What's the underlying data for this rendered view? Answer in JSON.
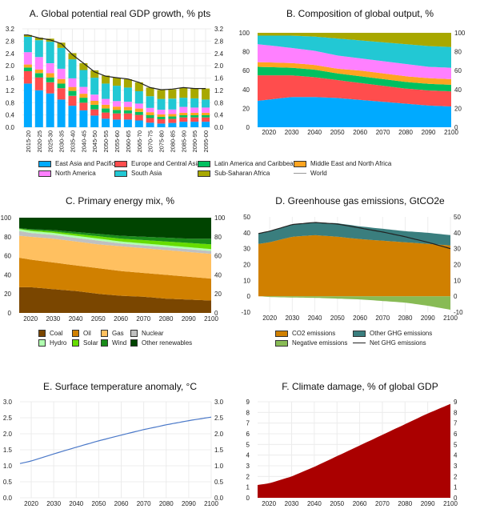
{
  "chart_data": [
    {
      "id": "A",
      "type": "bar",
      "stacked": true,
      "title": "A. Global potential real GDP growth, % pts",
      "xlabel": "",
      "ylabel": "",
      "ylim": [
        0,
        3.2
      ],
      "yticks": [
        0.0,
        0.4,
        0.8,
        1.2,
        1.6,
        2.0,
        2.4,
        2.8,
        3.2
      ],
      "ytick_labels": [
        "0.0",
        "0.4",
        "0.8",
        "1.2",
        "1.6",
        "2.0",
        "2.4",
        "2.8",
        "3.2"
      ],
      "grid": true,
      "categories": [
        "2015-20",
        "2020-25",
        "2025-30",
        "2030-35",
        "2035-40",
        "2040-45",
        "2045-50",
        "2050-55",
        "2055-60",
        "2060-65",
        "2065-70",
        "2070-75",
        "2075-80",
        "2080-85",
        "2085-90",
        "2090-95",
        "2095-00"
      ],
      "series": [
        {
          "name": "East Asia and Pacific",
          "color": "#00aaff",
          "values": [
            1.42,
            1.2,
            1.1,
            0.9,
            0.7,
            0.55,
            0.38,
            0.28,
            0.25,
            0.25,
            0.22,
            0.15,
            0.12,
            0.14,
            0.18,
            0.18,
            0.18
          ]
        },
        {
          "name": "Europe and Central Asia",
          "color": "#ff4d4d",
          "values": [
            0.4,
            0.42,
            0.36,
            0.37,
            0.32,
            0.25,
            0.2,
            0.2,
            0.2,
            0.2,
            0.18,
            0.15,
            0.14,
            0.13,
            0.14,
            0.14,
            0.14
          ]
        },
        {
          "name": "Latin America and Caribbean",
          "color": "#00c060",
          "values": [
            0.12,
            0.14,
            0.16,
            0.15,
            0.16,
            0.16,
            0.15,
            0.13,
            0.11,
            0.1,
            0.1,
            0.09,
            0.08,
            0.08,
            0.07,
            0.07,
            0.07
          ]
        },
        {
          "name": "Middle East and North Africa",
          "color": "#ffa420",
          "values": [
            0.1,
            0.12,
            0.14,
            0.15,
            0.13,
            0.13,
            0.13,
            0.12,
            0.11,
            0.11,
            0.11,
            0.1,
            0.08,
            0.08,
            0.08,
            0.08,
            0.08
          ]
        },
        {
          "name": "North America",
          "color": "#ff80ff",
          "values": [
            0.4,
            0.4,
            0.32,
            0.33,
            0.28,
            0.22,
            0.2,
            0.19,
            0.18,
            0.17,
            0.16,
            0.14,
            0.15,
            0.15,
            0.19,
            0.17,
            0.17
          ]
        },
        {
          "name": "South Asia",
          "color": "#22c8d4",
          "values": [
            0.5,
            0.55,
            0.7,
            0.68,
            0.62,
            0.55,
            0.55,
            0.5,
            0.5,
            0.46,
            0.4,
            0.38,
            0.35,
            0.35,
            0.3,
            0.3,
            0.26
          ]
        },
        {
          "name": "Sub-Saharan Africa",
          "color": "#a8a800",
          "values": [
            0.06,
            0.08,
            0.1,
            0.17,
            0.2,
            0.22,
            0.24,
            0.26,
            0.26,
            0.27,
            0.29,
            0.28,
            0.29,
            0.3,
            0.33,
            0.32,
            0.36
          ]
        }
      ],
      "line_series": {
        "name": "World",
        "color": "#222222",
        "values": [
          3.0,
          2.9,
          2.84,
          2.72,
          2.36,
          2.08,
          1.8,
          1.66,
          1.61,
          1.57,
          1.46,
          1.29,
          1.22,
          1.24,
          1.29,
          1.26,
          1.26
        ]
      }
    },
    {
      "id": "B",
      "type": "area",
      "stacked": true,
      "title": "B. Composition of global output, %",
      "xlabel": "",
      "ylabel": "",
      "xlim": [
        2015,
        2100
      ],
      "xticks": [
        2020,
        2030,
        2040,
        2050,
        2060,
        2070,
        2080,
        2090,
        2100
      ],
      "ylim": [
        0,
        100
      ],
      "yticks": [
        0,
        20,
        40,
        60,
        80,
        100
      ],
      "grid": false,
      "x": [
        2015,
        2030,
        2040,
        2050,
        2060,
        2070,
        2080,
        2090,
        2100
      ],
      "series": [
        {
          "name": "East Asia and Pacific",
          "color": "#00aaff",
          "values": [
            28,
            32,
            32,
            31,
            29,
            27,
            25,
            23,
            22
          ]
        },
        {
          "name": "Europe and Central Asia",
          "color": "#ff4d4d",
          "values": [
            27,
            23,
            21,
            19,
            18,
            17,
            16,
            16,
            16
          ]
        },
        {
          "name": "Latin America and Caribbean",
          "color": "#00c060",
          "values": [
            9,
            8,
            8,
            7,
            7,
            7,
            7,
            7,
            7
          ]
        },
        {
          "name": "Middle East and North Africa",
          "color": "#ffa420",
          "values": [
            5,
            5,
            5,
            5,
            6,
            6,
            6,
            6,
            6
          ]
        },
        {
          "name": "North America",
          "color": "#ff80ff",
          "values": [
            19,
            16,
            15,
            14,
            13,
            13,
            13,
            12,
            12
          ]
        },
        {
          "name": "South Asia",
          "color": "#22c8d4",
          "values": [
            9,
            13,
            15,
            18,
            19,
            20,
            21,
            22,
            22
          ]
        },
        {
          "name": "Sub-Saharan Africa",
          "color": "#a8a800",
          "values": [
            3,
            3,
            4,
            6,
            8,
            10,
            12,
            14,
            15
          ]
        }
      ]
    },
    {
      "id": "C",
      "type": "area",
      "stacked": true,
      "title": "C. Primary energy mix, %",
      "xlabel": "",
      "ylabel": "",
      "xlim": [
        2015,
        2100
      ],
      "xticks": [
        2020,
        2030,
        2040,
        2050,
        2060,
        2070,
        2080,
        2090,
        2100
      ],
      "ylim": [
        0,
        100
      ],
      "yticks": [
        0,
        20,
        40,
        60,
        80,
        100
      ],
      "grid": false,
      "x": [
        2015,
        2020,
        2030,
        2040,
        2050,
        2060,
        2070,
        2080,
        2090,
        2100
      ],
      "series": [
        {
          "name": "Coal",
          "color": "#7a4600",
          "values": [
            27,
            27,
            25,
            23,
            20,
            18,
            17,
            15,
            14,
            13
          ]
        },
        {
          "name": "Oil",
          "color": "#d08000",
          "values": [
            31,
            29,
            28,
            27,
            27,
            26,
            25,
            25,
            24,
            23
          ]
        },
        {
          "name": "Gas",
          "color": "#ffc060",
          "values": [
            23,
            24,
            25,
            25,
            25,
            26,
            26,
            26,
            26,
            26
          ]
        },
        {
          "name": "Nuclear",
          "color": "#c0c0c0",
          "values": [
            5,
            4,
            4,
            4,
            4,
            3,
            3,
            3,
            3,
            3
          ]
        },
        {
          "name": "Hydro",
          "color": "#b0ffb0",
          "values": [
            2,
            2,
            2,
            2,
            2,
            2,
            2,
            2,
            2,
            2
          ]
        },
        {
          "name": "Solar",
          "color": "#66dd00",
          "values": [
            0.5,
            1,
            1.5,
            2,
            2.5,
            3,
            3.5,
            4,
            4.5,
            5
          ]
        },
        {
          "name": "Wind",
          "color": "#1a8c1a",
          "values": [
            0.5,
            1,
            1.5,
            2,
            2.5,
            3,
            3.5,
            4,
            4.5,
            6
          ]
        },
        {
          "name": "Other renewables",
          "color": "#004400",
          "values": [
            11,
            12,
            13,
            15,
            17,
            19,
            20,
            21,
            22,
            22
          ]
        }
      ]
    },
    {
      "id": "D",
      "type": "area",
      "stacked": true,
      "title": "D. Greenhouse gas emissions, GtCO2e",
      "xlabel": "",
      "ylabel": "",
      "xlim": [
        2015,
        2100
      ],
      "xticks": [
        2020,
        2030,
        2040,
        2050,
        2060,
        2070,
        2080,
        2090,
        2100
      ],
      "ylim": [
        -10,
        50
      ],
      "yticks": [
        -10,
        0,
        10,
        20,
        30,
        40,
        50
      ],
      "grid": false,
      "x": [
        2015,
        2020,
        2030,
        2040,
        2050,
        2060,
        2070,
        2080,
        2090,
        2100
      ],
      "series": [
        {
          "name": "CO2 emissions",
          "color": "#d08000",
          "values": [
            33,
            34,
            37.5,
            38.5,
            37.5,
            36,
            35,
            34,
            33,
            32
          ]
        },
        {
          "name": "Other GHG emissions",
          "color": "#3a7e7e",
          "values": [
            6.5,
            7,
            7.7,
            8,
            8.5,
            8,
            7.5,
            7,
            7,
            6.5
          ]
        },
        {
          "name": "Negative emissions",
          "color": "#88bb55",
          "values": [
            0,
            -0.5,
            -0.8,
            -1,
            -1.5,
            -2,
            -3,
            -4,
            -6,
            -8.5
          ]
        }
      ],
      "line_series": {
        "name": "Net GHG emissions",
        "color": "#222222",
        "values": [
          39.5,
          41,
          45.2,
          46.5,
          45.5,
          43,
          40.5,
          37.5,
          34,
          30
        ]
      }
    },
    {
      "id": "E",
      "type": "line",
      "title": "E. Surface temperature anomaly, °C",
      "xlabel": "",
      "ylabel": "",
      "xlim": [
        2015,
        2100
      ],
      "xticks": [
        2020,
        2030,
        2040,
        2050,
        2060,
        2070,
        2080,
        2090,
        2100
      ],
      "ylim": [
        0,
        3.0
      ],
      "yticks": [
        0.0,
        0.5,
        1.0,
        1.5,
        2.0,
        2.5,
        3.0
      ],
      "ytick_labels": [
        "0.0",
        "0.5",
        "1.0",
        "1.5",
        "2.0",
        "2.5",
        "3.0"
      ],
      "grid": true,
      "x": [
        2015,
        2020,
        2030,
        2040,
        2050,
        2060,
        2070,
        2080,
        2090,
        2100
      ],
      "series": [
        {
          "name": "Surface temperature anomaly",
          "color": "#4a78c8",
          "values": [
            1.07,
            1.15,
            1.37,
            1.58,
            1.78,
            1.96,
            2.13,
            2.28,
            2.41,
            2.52
          ]
        }
      ]
    },
    {
      "id": "F",
      "type": "area",
      "title": "F. Climate damage, % of global GDP",
      "xlabel": "",
      "ylabel": "",
      "xlim": [
        2015,
        2100
      ],
      "xticks": [
        2020,
        2030,
        2040,
        2050,
        2060,
        2070,
        2080,
        2090,
        2100
      ],
      "ylim": [
        0,
        9
      ],
      "yticks": [
        0,
        1,
        2,
        3,
        4,
        5,
        6,
        7,
        8,
        9
      ],
      "grid": true,
      "x": [
        2015,
        2020,
        2030,
        2040,
        2050,
        2060,
        2070,
        2080,
        2090,
        2100
      ],
      "series": [
        {
          "name": "Climate damage",
          "color": "#aa0000",
          "values": [
            1.2,
            1.35,
            2.0,
            2.9,
            3.9,
            4.9,
            5.9,
            6.9,
            7.9,
            8.8
          ]
        }
      ]
    }
  ],
  "legends": {
    "regions": [
      "East Asia and Pacific",
      "Europe and Central Asia",
      "Latin America and Caribbean",
      "Middle East and North Africa",
      "North America",
      "South Asia",
      "Sub-Saharan Africa",
      "World"
    ],
    "energy": [
      "Coal",
      "Oil",
      "Gas",
      "Nuclear",
      "Hydro",
      "Solar",
      "Wind",
      "Other renewables"
    ],
    "emissions": [
      "CO2 emissions",
      "Other GHG emissions",
      "Negative emissions",
      "Net GHG emissions"
    ]
  }
}
